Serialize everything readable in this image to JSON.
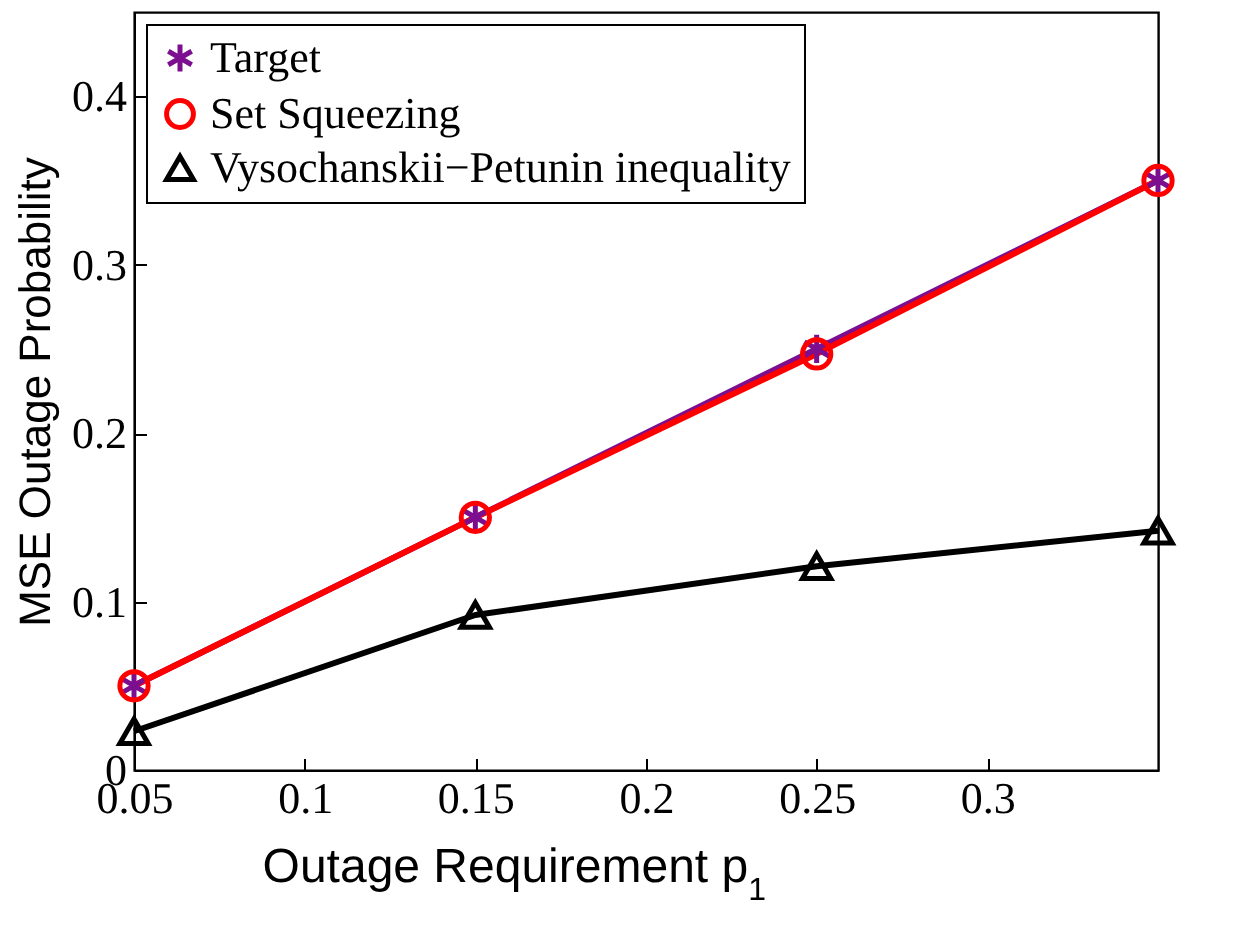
{
  "chart_data": {
    "type": "line",
    "xlabel": "Outage Requirement p$_{1}$",
    "ylabel": "MSE Outage Probability",
    "x": [
      0.05,
      0.15,
      0.25,
      0.35
    ],
    "xlim": [
      0.05,
      0.35
    ],
    "xticks": [
      0.05,
      0.1,
      0.15,
      0.2,
      0.25,
      0.3
    ],
    "ylim": [
      0,
      0.45
    ],
    "yticks": [
      0,
      0.1,
      0.2,
      0.3,
      0.4
    ],
    "grid": false,
    "legend": "top left",
    "line_style": "solid",
    "series": [
      {
        "name": "Target",
        "color": "#7b0f8f",
        "marker": "cross",
        "values": [
          0.05,
          0.15,
          0.25,
          0.35
        ]
      },
      {
        "name": "Set Squeezing",
        "color": "#ff0000",
        "marker": "circle",
        "values": [
          0.05,
          0.15,
          0.247,
          0.35
        ]
      },
      {
        "name": "Vysochanskii−Petunin inequality",
        "color": "#000000",
        "marker": "triangle",
        "values": [
          0.023,
          0.092,
          0.121,
          0.142
        ]
      }
    ]
  }
}
